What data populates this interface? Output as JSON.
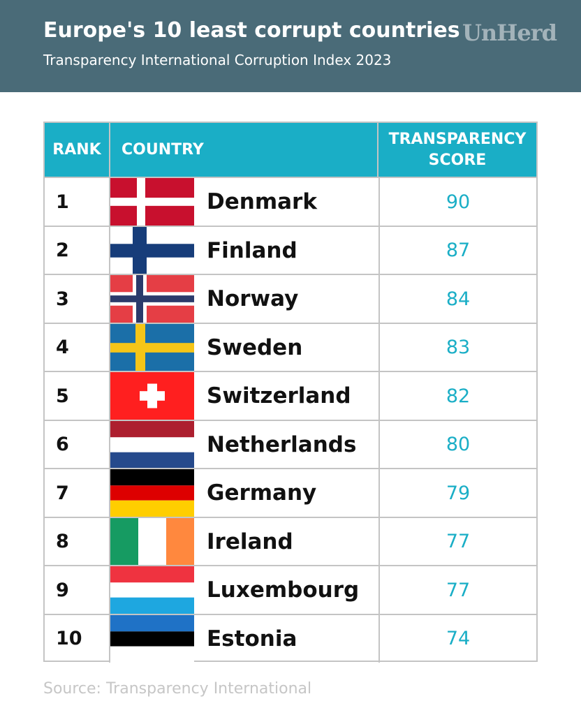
{
  "header": {
    "title": "Europe's 10 least corrupt countries",
    "subtitle": "Transparency International Corruption Index 2023",
    "logo": "UnHerd",
    "background_color": "#4a6b78"
  },
  "accent_color": "#1aaec6",
  "chart_data": {
    "type": "table",
    "columns": [
      "RANK",
      "COUNTRY",
      "TRANSPARENCY",
      "SCORE"
    ],
    "rows": [
      {
        "rank": "1",
        "country": "Denmark",
        "score": "90",
        "flag": "denmark-flag-icon"
      },
      {
        "rank": "2",
        "country": "Finland",
        "score": "87",
        "flag": "finland-flag-icon"
      },
      {
        "rank": "3",
        "country": "Norway",
        "score": "84",
        "flag": "norway-flag-icon"
      },
      {
        "rank": "4",
        "country": "Sweden",
        "score": "83",
        "flag": "sweden-flag-icon"
      },
      {
        "rank": "5",
        "country": "Switzerland",
        "score": "82",
        "flag": "switzerland-flag-icon"
      },
      {
        "rank": "6",
        "country": "Netherlands",
        "score": "80",
        "flag": "netherlands-flag-icon"
      },
      {
        "rank": "7",
        "country": "Germany",
        "score": "79",
        "flag": "germany-flag-icon"
      },
      {
        "rank": "8",
        "country": "Ireland",
        "score": "77",
        "flag": "ireland-flag-icon"
      },
      {
        "rank": "9",
        "country": "Luxembourg",
        "score": "77",
        "flag": "luxembourg-flag-icon"
      },
      {
        "rank": "10",
        "country": "Estonia",
        "score": "74",
        "flag": "estonia-flag-icon"
      }
    ]
  },
  "footer": {
    "source": "Source: Transparency International"
  }
}
